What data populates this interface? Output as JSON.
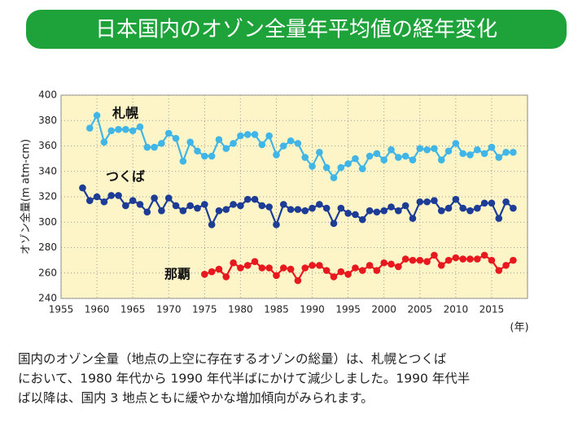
{
  "chart_data": {
    "type": "line",
    "title": "日本国内のオゾン全量年平均値の経年変化",
    "y_label": "オゾン全量(m atm-cm)",
    "x_unit_label": "(年)",
    "xlim": [
      1955,
      2020
    ],
    "xticks": [
      1955,
      1960,
      1965,
      1970,
      1975,
      1980,
      1985,
      1990,
      1995,
      2000,
      2005,
      2010,
      2015
    ],
    "ylim": [
      240,
      400
    ],
    "yticks": [
      240,
      260,
      280,
      300,
      320,
      340,
      360,
      380,
      400
    ],
    "grid": true,
    "series": [
      {
        "name": "札幌",
        "color": "#41b6e6",
        "x": [
          1959,
          1960,
          1961,
          1962,
          1963,
          1964,
          1965,
          1966,
          1967,
          1968,
          1969,
          1970,
          1971,
          1972,
          1973,
          1974,
          1975,
          1976,
          1977,
          1978,
          1979,
          1980,
          1981,
          1982,
          1983,
          1984,
          1985,
          1986,
          1987,
          1988,
          1989,
          1990,
          1991,
          1992,
          1993,
          1994,
          1995,
          1996,
          1997,
          1998,
          1999,
          2000,
          2001,
          2002,
          2003,
          2004,
          2005,
          2006,
          2007,
          2008,
          2009,
          2010,
          2011,
          2012,
          2013,
          2014,
          2015,
          2016,
          2017,
          2018
        ],
        "values": [
          374,
          384,
          363,
          372,
          373,
          373,
          372,
          375,
          359,
          359,
          362,
          370,
          366,
          348,
          363,
          356,
          352,
          352,
          365,
          358,
          362,
          368,
          369,
          369,
          361,
          368,
          353,
          360,
          364,
          362,
          351,
          344,
          355,
          343,
          335,
          343,
          346,
          350,
          342,
          352,
          354,
          349,
          357,
          351,
          352,
          349,
          358,
          357,
          358,
          349,
          356,
          362,
          354,
          353,
          357,
          354,
          359,
          351,
          355,
          355
        ]
      },
      {
        "name": "つくば",
        "color": "#1c3c96",
        "x": [
          1958,
          1959,
          1960,
          1961,
          1962,
          1963,
          1964,
          1965,
          1966,
          1967,
          1968,
          1969,
          1970,
          1971,
          1972,
          1973,
          1974,
          1975,
          1976,
          1977,
          1978,
          1979,
          1980,
          1981,
          1982,
          1983,
          1984,
          1985,
          1986,
          1987,
          1988,
          1989,
          1990,
          1991,
          1992,
          1993,
          1994,
          1995,
          1996,
          1997,
          1998,
          1999,
          2000,
          2001,
          2002,
          2003,
          2004,
          2005,
          2006,
          2007,
          2008,
          2009,
          2010,
          2011,
          2012,
          2013,
          2014,
          2015,
          2016,
          2017,
          2018
        ],
        "values": [
          327,
          317,
          320,
          316,
          321,
          321,
          313,
          317,
          314,
          308,
          319,
          309,
          319,
          313,
          309,
          313,
          311,
          314,
          298,
          309,
          310,
          314,
          313,
          318,
          318,
          313,
          312,
          298,
          314,
          310,
          310,
          309,
          311,
          314,
          311,
          299,
          311,
          307,
          306,
          302,
          309,
          308,
          309,
          312,
          309,
          313,
          303,
          316,
          316,
          317,
          309,
          311,
          318,
          311,
          309,
          311,
          315,
          315,
          303,
          316,
          311
        ]
      },
      {
        "name": "那覇",
        "color": "#e8191e",
        "x": [
          1975,
          1976,
          1977,
          1978,
          1979,
          1980,
          1981,
          1982,
          1983,
          1984,
          1985,
          1986,
          1987,
          1988,
          1989,
          1990,
          1991,
          1992,
          1993,
          1994,
          1995,
          1996,
          1997,
          1998,
          1999,
          2000,
          2001,
          2002,
          2003,
          2004,
          2005,
          2006,
          2007,
          2008,
          2009,
          2010,
          2011,
          2012,
          2013,
          2014,
          2015,
          2016,
          2017,
          2018
        ],
        "values": [
          259,
          261,
          263,
          257,
          268,
          264,
          266,
          269,
          264,
          264,
          258,
          264,
          263,
          254,
          264,
          266,
          266,
          262,
          257,
          261,
          259,
          264,
          262,
          266,
          262,
          268,
          267,
          265,
          271,
          270,
          270,
          269,
          274,
          266,
          270,
          272,
          271,
          271,
          271,
          274,
          270,
          262,
          266,
          270
        ]
      }
    ]
  },
  "caption": [
    "国内のオゾン全量（地点の上空に存在するオゾンの総量）は、札幌とつくば",
    "において、1980 年代から 1990 年代半ばにかけて減少しました。1990 年代半",
    "ば以降は、国内 3 地点ともに緩やかな増加傾向がみられます。"
  ]
}
